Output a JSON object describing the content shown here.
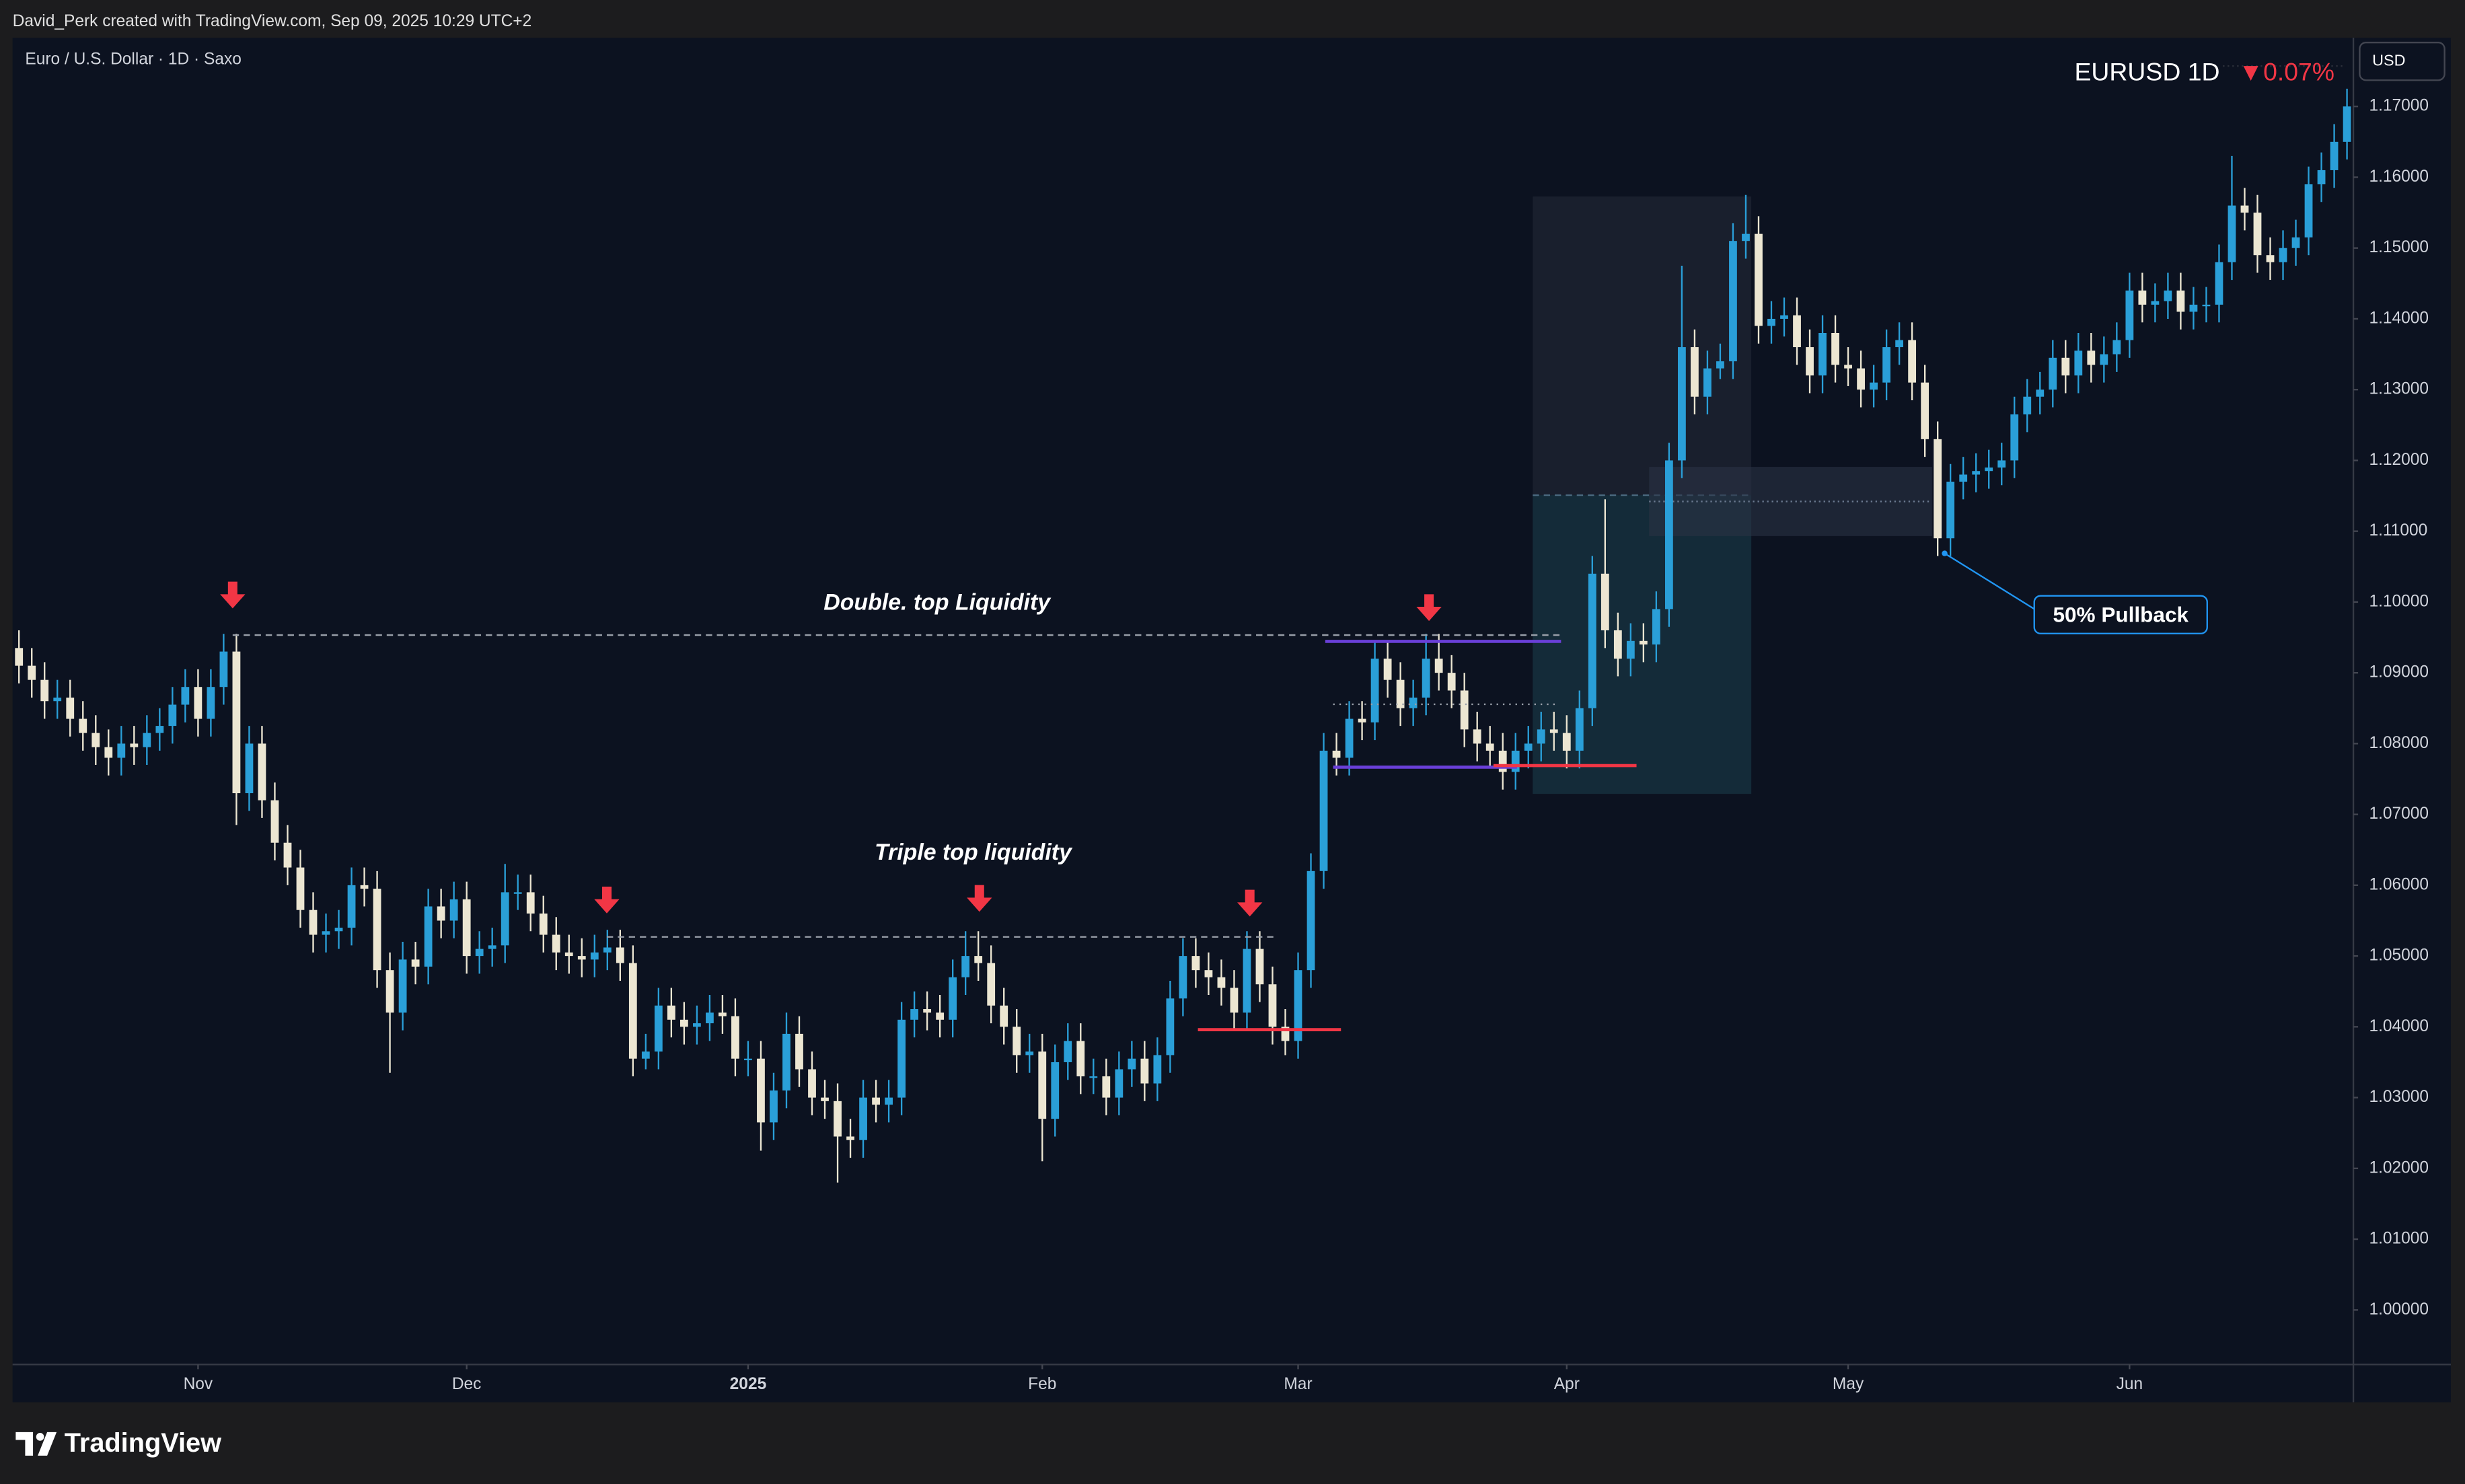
{
  "header": {
    "credit": "David_Perk created with TradingView.com, Sep 09, 2025 10:29 UTC+2"
  },
  "brand": "TradingView",
  "chart_data": {
    "type": "candlestick",
    "title": "Euro / U.S. Dollar · 1D · Saxo",
    "symbol": "EURUSD 1D",
    "change": "▼0.07%",
    "currency": "USD",
    "up_color": "#2a9fd8",
    "down_color": "#ece6d2",
    "annotations": [
      "Double. top Liquidity",
      "Triple top liquidity",
      "50% Pullback"
    ],
    "xlim": [
      -0.5,
      182.5
    ],
    "xticks": [
      {
        "value": 14,
        "label": "Nov"
      },
      {
        "value": 35,
        "label": "Dec"
      },
      {
        "value": 57,
        "label": "2025"
      },
      {
        "value": 80,
        "label": "Feb"
      },
      {
        "value": 100,
        "label": "Mar"
      },
      {
        "value": 121,
        "label": "Apr"
      },
      {
        "value": 143,
        "label": "May"
      },
      {
        "value": 165,
        "label": "Jun"
      }
    ],
    "ylim": [
      0.9923,
      1.1797
    ],
    "yticks": [
      {
        "value": 1.0,
        "label": "1.00000"
      },
      {
        "value": 1.01,
        "label": "1.01000"
      },
      {
        "value": 1.02,
        "label": "1.02000"
      },
      {
        "value": 1.03,
        "label": "1.03000"
      },
      {
        "value": 1.04,
        "label": "1.04000"
      },
      {
        "value": 1.05,
        "label": "1.05000"
      },
      {
        "value": 1.06,
        "label": "1.06000"
      },
      {
        "value": 1.07,
        "label": "1.07000"
      },
      {
        "value": 1.08,
        "label": "1.08000"
      },
      {
        "value": 1.09,
        "label": "1.09000"
      },
      {
        "value": 1.1,
        "label": "1.10000"
      },
      {
        "value": 1.11,
        "label": "1.11000"
      },
      {
        "value": 1.12,
        "label": "1.12000"
      },
      {
        "value": 1.13,
        "label": "1.13000"
      },
      {
        "value": 1.14,
        "label": "1.14000"
      },
      {
        "value": 1.15,
        "label": "1.15000"
      },
      {
        "value": 1.16,
        "label": "1.16000"
      },
      {
        "value": 1.17,
        "label": "1.17000"
      }
    ],
    "ohlc": [
      [
        1.0935,
        1.096,
        1.0885,
        1.091
      ],
      [
        1.091,
        1.0935,
        1.0865,
        1.089
      ],
      [
        1.089,
        1.0915,
        1.0835,
        1.086
      ],
      [
        1.086,
        1.089,
        1.0835,
        1.0865
      ],
      [
        1.0865,
        1.089,
        1.081,
        1.0835
      ],
      [
        1.0835,
        1.086,
        1.079,
        1.0815
      ],
      [
        1.0815,
        1.084,
        1.077,
        1.0795
      ],
      [
        1.0795,
        1.082,
        1.0755,
        1.078
      ],
      [
        1.078,
        1.0825,
        1.0755,
        1.08
      ],
      [
        1.08,
        1.0825,
        1.077,
        1.0795
      ],
      [
        1.0795,
        1.084,
        1.077,
        1.0815
      ],
      [
        1.0815,
        1.085,
        1.079,
        1.0825
      ],
      [
        1.0825,
        1.088,
        1.08,
        1.0855
      ],
      [
        1.0855,
        1.0905,
        1.083,
        1.088
      ],
      [
        1.088,
        1.0905,
        1.081,
        1.0835
      ],
      [
        1.0835,
        1.0905,
        1.081,
        1.088
      ],
      [
        1.088,
        1.0955,
        1.0855,
        1.093
      ],
      [
        1.093,
        1.0955,
        1.0685,
        1.073
      ],
      [
        1.073,
        1.0825,
        1.0705,
        1.08
      ],
      [
        1.08,
        1.0825,
        1.0695,
        1.072
      ],
      [
        1.072,
        1.0745,
        1.0635,
        1.066
      ],
      [
        1.066,
        1.0685,
        1.06,
        1.0625
      ],
      [
        1.0625,
        1.065,
        1.054,
        1.0565
      ],
      [
        1.0565,
        1.059,
        1.0505,
        1.053
      ],
      [
        1.053,
        1.056,
        1.0505,
        1.0535
      ],
      [
        1.0535,
        1.0565,
        1.051,
        1.054
      ],
      [
        1.054,
        1.0625,
        1.0515,
        1.06
      ],
      [
        1.06,
        1.0625,
        1.057,
        1.0595
      ],
      [
        1.0595,
        1.062,
        1.0455,
        1.048
      ],
      [
        1.048,
        1.0505,
        1.0335,
        1.042
      ],
      [
        1.042,
        1.052,
        1.0395,
        1.0495
      ],
      [
        1.0495,
        1.052,
        1.046,
        1.0485
      ],
      [
        1.0485,
        1.0595,
        1.046,
        1.057
      ],
      [
        1.057,
        1.0595,
        1.0525,
        1.055
      ],
      [
        1.055,
        1.0605,
        1.0525,
        1.058
      ],
      [
        1.058,
        1.0605,
        1.0475,
        1.05
      ],
      [
        1.05,
        1.0535,
        1.0475,
        1.051
      ],
      [
        1.051,
        1.054,
        1.0485,
        1.0515
      ],
      [
        1.0515,
        1.063,
        1.049,
        1.059
      ],
      [
        1.059,
        1.0615,
        1.0565,
        1.059
      ],
      [
        1.059,
        1.0615,
        1.0535,
        1.056
      ],
      [
        1.056,
        1.0585,
        1.0505,
        1.053
      ],
      [
        1.053,
        1.0555,
        1.048,
        1.0505
      ],
      [
        1.0505,
        1.053,
        1.0475,
        1.05
      ],
      [
        1.05,
        1.0525,
        1.047,
        1.0495
      ],
      [
        1.0495,
        1.053,
        1.047,
        1.0505
      ],
      [
        1.0505,
        1.0537,
        1.048,
        1.0512
      ],
      [
        1.0512,
        1.0537,
        1.0465,
        1.049
      ],
      [
        1.049,
        1.0515,
        1.033,
        1.0355
      ],
      [
        1.0355,
        1.039,
        1.034,
        1.0365
      ],
      [
        1.0365,
        1.0455,
        1.034,
        1.043
      ],
      [
        1.043,
        1.0455,
        1.0385,
        1.041
      ],
      [
        1.041,
        1.0435,
        1.0375,
        1.04
      ],
      [
        1.04,
        1.043,
        1.0375,
        1.0405
      ],
      [
        1.0405,
        1.0445,
        1.038,
        1.042
      ],
      [
        1.042,
        1.0445,
        1.039,
        1.0415
      ],
      [
        1.0415,
        1.044,
        1.033,
        1.0355
      ],
      [
        1.0355,
        1.038,
        1.033,
        1.0355
      ],
      [
        1.0355,
        1.038,
        1.0225,
        1.0265
      ],
      [
        1.0265,
        1.0335,
        1.024,
        1.031
      ],
      [
        1.031,
        1.042,
        1.0285,
        1.039
      ],
      [
        1.039,
        1.0415,
        1.0315,
        1.034
      ],
      [
        1.034,
        1.0365,
        1.0275,
        1.03
      ],
      [
        1.03,
        1.0325,
        1.027,
        1.0295
      ],
      [
        1.0295,
        1.032,
        1.018,
        1.0245
      ],
      [
        1.0245,
        1.027,
        1.0215,
        1.024
      ],
      [
        1.024,
        1.0325,
        1.0215,
        1.03
      ],
      [
        1.03,
        1.0325,
        1.0265,
        1.029
      ],
      [
        1.029,
        1.0325,
        1.0265,
        1.03
      ],
      [
        1.03,
        1.0435,
        1.0275,
        1.041
      ],
      [
        1.041,
        1.045,
        1.0385,
        1.0425
      ],
      [
        1.0425,
        1.045,
        1.0395,
        1.042
      ],
      [
        1.042,
        1.0445,
        1.0385,
        1.041
      ],
      [
        1.041,
        1.0495,
        1.0385,
        1.047
      ],
      [
        1.047,
        1.0535,
        1.0445,
        1.05
      ],
      [
        1.05,
        1.0535,
        1.0465,
        1.049
      ],
      [
        1.049,
        1.0515,
        1.0405,
        1.043
      ],
      [
        1.043,
        1.0455,
        1.0375,
        1.04
      ],
      [
        1.04,
        1.0425,
        1.0335,
        1.036
      ],
      [
        1.036,
        1.039,
        1.0335,
        1.0365
      ],
      [
        1.0365,
        1.039,
        1.021,
        1.027
      ],
      [
        1.027,
        1.0375,
        1.0245,
        1.035
      ],
      [
        1.035,
        1.0405,
        1.0325,
        1.038
      ],
      [
        1.038,
        1.0405,
        1.0305,
        1.033
      ],
      [
        1.033,
        1.0355,
        1.0305,
        1.033
      ],
      [
        1.033,
        1.0355,
        1.0275,
        1.03
      ],
      [
        1.03,
        1.0365,
        1.0275,
        1.034
      ],
      [
        1.034,
        1.038,
        1.0315,
        1.0355
      ],
      [
        1.0355,
        1.038,
        1.0295,
        1.032
      ],
      [
        1.032,
        1.0385,
        1.0295,
        1.036
      ],
      [
        1.036,
        1.0465,
        1.0335,
        1.044
      ],
      [
        1.044,
        1.0525,
        1.0415,
        1.05
      ],
      [
        1.05,
        1.0525,
        1.0455,
        1.048
      ],
      [
        1.048,
        1.0505,
        1.0445,
        1.047
      ],
      [
        1.047,
        1.0495,
        1.043,
        1.0455
      ],
      [
        1.0455,
        1.048,
        1.0395,
        1.042
      ],
      [
        1.042,
        1.0535,
        1.0395,
        1.051
      ],
      [
        1.051,
        1.0535,
        1.0435,
        1.046
      ],
      [
        1.046,
        1.0485,
        1.0375,
        1.04
      ],
      [
        1.04,
        1.0425,
        1.036,
        1.038
      ],
      [
        1.038,
        1.0505,
        1.0355,
        1.048
      ],
      [
        1.048,
        1.0645,
        1.0455,
        1.062
      ],
      [
        1.062,
        1.0815,
        1.0595,
        1.079
      ],
      [
        1.079,
        1.0815,
        1.0755,
        1.078
      ],
      [
        1.078,
        1.086,
        1.0755,
        1.0835
      ],
      [
        1.0835,
        1.086,
        1.0805,
        1.083
      ],
      [
        1.083,
        1.0945,
        1.0805,
        1.092
      ],
      [
        1.092,
        1.0945,
        1.0865,
        1.089
      ],
      [
        1.089,
        1.0915,
        1.0825,
        1.085
      ],
      [
        1.085,
        1.089,
        1.0825,
        1.0865
      ],
      [
        1.0865,
        1.0955,
        1.084,
        1.092
      ],
      [
        1.092,
        1.0955,
        1.0875,
        1.09
      ],
      [
        1.09,
        1.0925,
        1.085,
        1.0875
      ],
      [
        1.0875,
        1.09,
        1.0795,
        1.082
      ],
      [
        1.082,
        1.0845,
        1.0775,
        1.08
      ],
      [
        1.08,
        1.0825,
        1.0765,
        1.079
      ],
      [
        1.079,
        1.0815,
        1.0735,
        1.076
      ],
      [
        1.076,
        1.0815,
        1.0735,
        1.079
      ],
      [
        1.079,
        1.0825,
        1.0765,
        1.08
      ],
      [
        1.08,
        1.0845,
        1.0775,
        1.082
      ],
      [
        1.082,
        1.0845,
        1.079,
        1.0815
      ],
      [
        1.0815,
        1.084,
        1.0765,
        1.079
      ],
      [
        1.079,
        1.0875,
        1.0765,
        1.085
      ],
      [
        1.085,
        1.1065,
        1.0825,
        1.104
      ],
      [
        1.104,
        1.1145,
        1.0935,
        1.096
      ],
      [
        1.096,
        1.0985,
        1.0895,
        1.092
      ],
      [
        1.092,
        1.097,
        1.0895,
        1.0945
      ],
      [
        1.0945,
        1.097,
        1.0915,
        1.094
      ],
      [
        1.094,
        1.1015,
        1.0915,
        1.099
      ],
      [
        1.099,
        1.1225,
        1.0965,
        1.12
      ],
      [
        1.12,
        1.1475,
        1.1175,
        1.136
      ],
      [
        1.136,
        1.1385,
        1.1265,
        1.129
      ],
      [
        1.129,
        1.1355,
        1.1265,
        1.133
      ],
      [
        1.133,
        1.1365,
        1.1315,
        1.134
      ],
      [
        1.134,
        1.1535,
        1.1315,
        1.151
      ],
      [
        1.151,
        1.1575,
        1.1485,
        1.152
      ],
      [
        1.152,
        1.1545,
        1.1365,
        1.139
      ],
      [
        1.139,
        1.1425,
        1.1365,
        1.14
      ],
      [
        1.14,
        1.143,
        1.1375,
        1.1405
      ],
      [
        1.1405,
        1.143,
        1.1335,
        1.136
      ],
      [
        1.136,
        1.1385,
        1.1295,
        1.132
      ],
      [
        1.132,
        1.1405,
        1.1295,
        1.138
      ],
      [
        1.138,
        1.1405,
        1.131,
        1.1335
      ],
      [
        1.1335,
        1.136,
        1.1305,
        1.133
      ],
      [
        1.133,
        1.1355,
        1.1275,
        1.13
      ],
      [
        1.13,
        1.1335,
        1.1275,
        1.131
      ],
      [
        1.131,
        1.1385,
        1.1285,
        1.136
      ],
      [
        1.136,
        1.1395,
        1.1335,
        1.137
      ],
      [
        1.137,
        1.1395,
        1.1285,
        1.131
      ],
      [
        1.131,
        1.1335,
        1.1205,
        1.123
      ],
      [
        1.123,
        1.1255,
        1.1065,
        1.109
      ],
      [
        1.109,
        1.1195,
        1.1065,
        1.117
      ],
      [
        1.117,
        1.1205,
        1.1145,
        1.118
      ],
      [
        1.118,
        1.121,
        1.1155,
        1.1185
      ],
      [
        1.1185,
        1.1215,
        1.116,
        1.119
      ],
      [
        1.119,
        1.1225,
        1.1165,
        1.12
      ],
      [
        1.12,
        1.129,
        1.1175,
        1.1265
      ],
      [
        1.1265,
        1.1315,
        1.124,
        1.129
      ],
      [
        1.129,
        1.1325,
        1.1265,
        1.13
      ],
      [
        1.13,
        1.137,
        1.1275,
        1.1345
      ],
      [
        1.1345,
        1.137,
        1.1295,
        1.132
      ],
      [
        1.132,
        1.138,
        1.1295,
        1.1355
      ],
      [
        1.1355,
        1.138,
        1.131,
        1.1335
      ],
      [
        1.1335,
        1.1375,
        1.131,
        1.135
      ],
      [
        1.135,
        1.1395,
        1.1325,
        1.137
      ],
      [
        1.137,
        1.1465,
        1.1345,
        1.144
      ],
      [
        1.144,
        1.1465,
        1.1395,
        1.142
      ],
      [
        1.142,
        1.145,
        1.1395,
        1.1425
      ],
      [
        1.1425,
        1.1465,
        1.14,
        1.144
      ],
      [
        1.144,
        1.1465,
        1.1385,
        1.141
      ],
      [
        1.141,
        1.1445,
        1.1385,
        1.142
      ],
      [
        1.142,
        1.1445,
        1.1395,
        1.142
      ],
      [
        1.142,
        1.1505,
        1.1395,
        1.148
      ],
      [
        1.148,
        1.163,
        1.1455,
        1.156
      ],
      [
        1.156,
        1.1585,
        1.1525,
        1.155
      ],
      [
        1.155,
        1.1575,
        1.1465,
        1.149
      ],
      [
        1.149,
        1.1515,
        1.1455,
        1.148
      ],
      [
        1.148,
        1.1525,
        1.1455,
        1.15
      ],
      [
        1.15,
        1.154,
        1.1475,
        1.1515
      ],
      [
        1.1515,
        1.1615,
        1.149,
        1.159
      ],
      [
        1.159,
        1.1635,
        1.1565,
        1.161
      ],
      [
        1.161,
        1.1675,
        1.1585,
        1.165
      ],
      [
        1.165,
        1.1725,
        1.1625,
        1.17
      ]
    ]
  }
}
